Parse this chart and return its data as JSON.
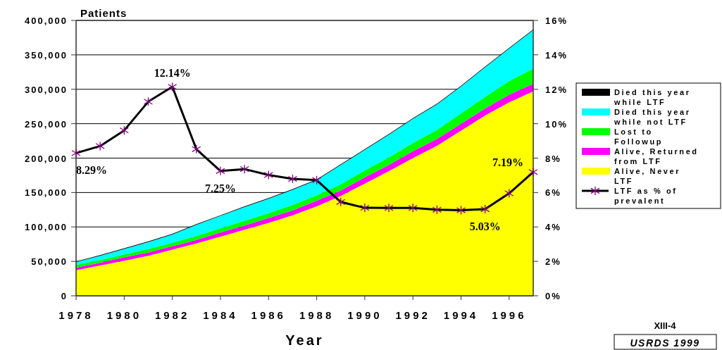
{
  "chart_data": {
    "type": "area",
    "stacked": true,
    "xlabel": "Year",
    "ylabel": "Patients",
    "x": [
      1978,
      1979,
      1980,
      1981,
      1982,
      1983,
      1984,
      1985,
      1986,
      1987,
      1988,
      1989,
      1990,
      1991,
      1992,
      1993,
      1994,
      1995,
      1996,
      1997
    ],
    "xlim": [
      1978,
      1997
    ],
    "xticks": [
      1978,
      1980,
      1982,
      1984,
      1986,
      1988,
      1990,
      1992,
      1994,
      1996
    ],
    "ylim": [
      0,
      400000
    ],
    "yticks": [
      {
        "value": 0,
        "label": "0"
      },
      {
        "value": 50000,
        "label": "50,000"
      },
      {
        "value": 100000,
        "label": "100,000"
      },
      {
        "value": 150000,
        "label": "150,000"
      },
      {
        "value": 200000,
        "label": "200,000"
      },
      {
        "value": 250000,
        "label": "250,000"
      },
      {
        "value": 300000,
        "label": "300,000"
      },
      {
        "value": 350000,
        "label": "350,000"
      },
      {
        "value": 400000,
        "label": "400,000"
      }
    ],
    "y2lim": [
      0,
      16
    ],
    "y2ticks": [
      {
        "value": 0,
        "label": "0%"
      },
      {
        "value": 2,
        "label": "2%"
      },
      {
        "value": 4,
        "label": "4%"
      },
      {
        "value": 6,
        "label": "6%"
      },
      {
        "value": 8,
        "label": "8%"
      },
      {
        "value": 10,
        "label": "10%"
      },
      {
        "value": 12,
        "label": "12%"
      },
      {
        "value": 14,
        "label": "14%"
      },
      {
        "value": 16,
        "label": "16%"
      }
    ],
    "grid": "y",
    "legend": "right",
    "series": [
      {
        "name": "Alive, Never LTF",
        "color": "#ffff00",
        "values": [
          37000,
          44000,
          51000,
          58000,
          67000,
          76000,
          86000,
          96000,
          106000,
          117000,
          130000,
          145000,
          163000,
          181000,
          200000,
          218000,
          240000,
          262000,
          281000,
          297000
        ]
      },
      {
        "name": "Alive, Returned from LTF",
        "color": "#ff00ff",
        "values": [
          4000,
          4000,
          5000,
          5000,
          5000,
          5000,
          6000,
          6000,
          7000,
          7000,
          8000,
          8000,
          9000,
          9000,
          10000,
          10000,
          10000,
          10000,
          11000,
          11000
        ]
      },
      {
        "name": "Lost to Followup",
        "color": "#00ff00",
        "values": [
          4000,
          4000,
          4000,
          5000,
          5000,
          6000,
          6000,
          7000,
          7000,
          8000,
          8000,
          9000,
          10000,
          11000,
          12000,
          13000,
          15000,
          17000,
          20000,
          22000
        ]
      },
      {
        "name": "Died this year while not LTF",
        "color": "#00ffff",
        "values": [
          4000,
          6000,
          8000,
          10000,
          12000,
          16000,
          18000,
          20000,
          21000,
          22000,
          22000,
          28000,
          30000,
          33000,
          35000,
          37000,
          39000,
          43000,
          47000,
          56000
        ]
      },
      {
        "name": "Died this year while LTF",
        "color": "#000000",
        "values": [
          1000,
          1000,
          1000,
          1000,
          1000,
          1000,
          1000,
          1000,
          1000,
          1000,
          1000,
          1000,
          1000,
          1000,
          1000,
          1000,
          1000,
          1000,
          1000,
          1000
        ]
      },
      {
        "name": "LTF as % of prevalent",
        "type": "line",
        "axis": "y2",
        "color": "#000000",
        "marker": "cross",
        "values": [
          8.29,
          8.7,
          9.61,
          11.28,
          12.14,
          8.52,
          7.25,
          7.36,
          7.02,
          6.79,
          6.72,
          5.45,
          5.11,
          5.1,
          5.1,
          5.0,
          4.97,
          5.03,
          5.95,
          7.19
        ],
        "value_labels": [
          "8.29%",
          null,
          null,
          null,
          "12.14%",
          null,
          "7.25%",
          null,
          null,
          null,
          null,
          null,
          null,
          null,
          null,
          null,
          null,
          "5.03%",
          null,
          "7.19%"
        ]
      }
    ],
    "annotations": [
      "XIII-4",
      "USRDS 1999"
    ]
  }
}
